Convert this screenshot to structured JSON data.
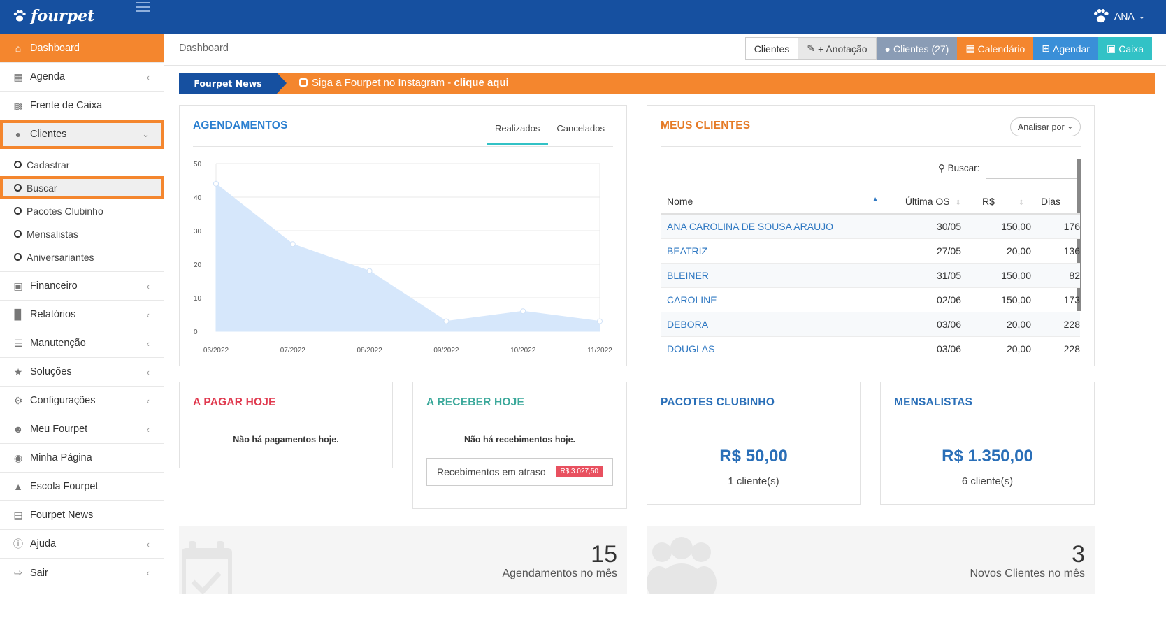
{
  "brand": {
    "name": "fourpet",
    "user": "ANA"
  },
  "sidebar": {
    "items": [
      {
        "label": "Dashboard",
        "icon": "home-icon",
        "active": true
      },
      {
        "label": "Agenda",
        "icon": "calendar-icon",
        "chevron": true
      },
      {
        "label": "Frente de Caixa",
        "icon": "calculator-icon"
      },
      {
        "label": "Clientes",
        "icon": "users-icon",
        "open": true
      }
    ],
    "subitems": [
      "Cadastrar",
      "Buscar",
      "Pacotes Clubinho",
      "Mensalistas",
      "Aniversariantes"
    ],
    "items2": [
      {
        "label": "Financeiro",
        "icon": "money-icon"
      },
      {
        "label": "Relatórios",
        "icon": "bar-chart-icon"
      },
      {
        "label": "Manutenção",
        "icon": "database-icon"
      },
      {
        "label": "Soluções",
        "icon": "star-icon"
      },
      {
        "label": "Configurações",
        "icon": "gears-icon"
      },
      {
        "label": "Meu Fourpet",
        "icon": "paw-icon"
      },
      {
        "label": "Minha Página",
        "icon": "globe-icon"
      },
      {
        "label": "Escola Fourpet",
        "icon": "graduation-cap-icon"
      },
      {
        "label": "Fourpet News",
        "icon": "newspaper-icon"
      },
      {
        "label": "Ajuda",
        "icon": "info-icon"
      },
      {
        "label": "Sair",
        "icon": "sign-out-icon"
      }
    ]
  },
  "header": {
    "breadcrumb": "Dashboard",
    "buttons": [
      {
        "label": "Clientes",
        "icon": ""
      },
      {
        "label": "+ Anotação",
        "icon": "edit-icon"
      },
      {
        "label": "Clientes (27)",
        "icon": "users-icon"
      },
      {
        "label": "Calendário",
        "icon": "calendar-icon"
      },
      {
        "label": "Agendar",
        "icon": "calendar-plus-icon"
      },
      {
        "label": "Caixa",
        "icon": "money-icon"
      }
    ]
  },
  "news": {
    "tag": "Fourpet News",
    "text": "Siga a Fourpet no Instagram - ",
    "link": "clique aqui"
  },
  "agendamentos": {
    "title": "AGENDAMENTOS",
    "tabs": [
      "Realizados",
      "Cancelados"
    ]
  },
  "chart_data": {
    "type": "area",
    "categories": [
      "06/2022",
      "07/2022",
      "08/2022",
      "09/2022",
      "10/2022",
      "11/2022"
    ],
    "values": [
      44,
      26,
      18,
      3,
      6,
      3
    ],
    "ylim": [
      0,
      50
    ],
    "yticks": [
      0,
      10,
      20,
      30,
      40,
      50
    ],
    "grid": true,
    "title": "",
    "xlabel": "",
    "ylabel": "",
    "fill_color": "#d6e7fb",
    "line_color": "#d6e7fb",
    "point_color": "#ffffff"
  },
  "meus_clientes": {
    "title": "MEUS CLIENTES",
    "analisar": "Analisar por",
    "buscar": "Buscar:",
    "columns": [
      "Nome",
      "Última OS",
      "R$",
      "Dias"
    ],
    "rows": [
      [
        "ANA CAROLINA DE SOUSA ARAUJO",
        "30/05",
        "150,00",
        "176"
      ],
      [
        "BEATRIZ",
        "27/05",
        "20,00",
        "136"
      ],
      [
        "BLEINER",
        "31/05",
        "150,00",
        "82"
      ],
      [
        "CAROLINE",
        "02/06",
        "150,00",
        "173"
      ],
      [
        "DEBORA",
        "03/06",
        "20,00",
        "228"
      ],
      [
        "DOUGLAS",
        "03/06",
        "20,00",
        "228"
      ]
    ]
  },
  "a_pagar": {
    "title": "A PAGAR HOJE",
    "text": "Não há pagamentos hoje."
  },
  "a_receber": {
    "title": "A RECEBER HOJE",
    "text": "Não há recebimentos hoje.",
    "atraso_label": "Recebimentos em atraso",
    "atraso_value": "R$ 3.027,50"
  },
  "pacotes": {
    "title": "PACOTES CLUBINHO",
    "value": "R$ 50,00",
    "sub": "1 cliente(s)"
  },
  "mensalistas": {
    "title": "MENSALISTAS",
    "value": "R$ 1.350,00",
    "sub": "6 cliente(s)"
  },
  "stats": [
    {
      "num": "15",
      "label": "Agendamentos no mês"
    },
    {
      "num": "3",
      "label": "Novos Clientes no mês"
    }
  ],
  "colors": {
    "brand_blue": "#1650a0",
    "accent_orange": "#f4862e",
    "teal": "#32c2c6",
    "red": "#e03a4f",
    "green": "#3aa89a"
  }
}
